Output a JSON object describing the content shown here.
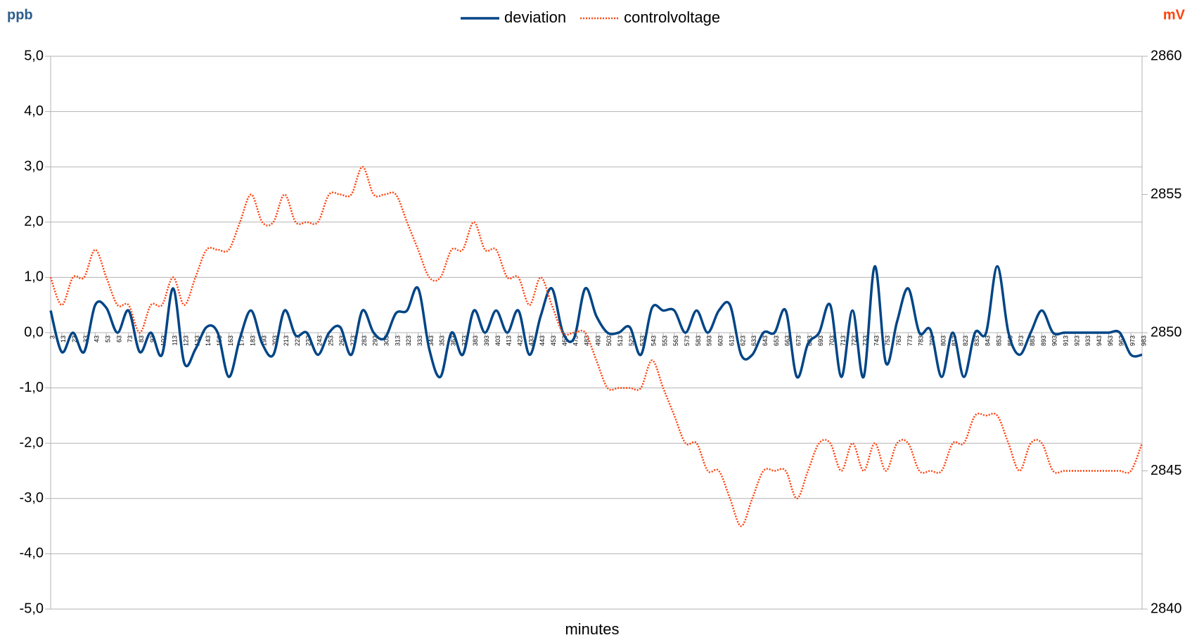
{
  "chart_data": {
    "type": "line",
    "y_label": "ppb",
    "y2_label": "mV",
    "x_label": "minutes",
    "x": [
      3,
      13,
      23,
      33,
      43,
      53,
      63,
      73,
      83,
      93,
      103,
      113,
      123,
      133,
      143,
      153,
      163,
      173,
      183,
      193,
      203,
      213,
      223,
      233,
      243,
      253,
      263,
      273,
      283,
      293,
      303,
      313,
      323,
      333,
      343,
      353,
      363,
      373,
      383,
      393,
      403,
      413,
      423,
      433,
      443,
      453,
      463,
      473,
      483,
      493,
      503,
      513,
      523,
      533,
      543,
      553,
      563,
      573,
      583,
      593,
      603,
      613,
      623,
      633,
      643,
      653,
      663,
      673,
      683,
      693,
      703,
      713,
      723,
      733,
      743,
      753,
      763,
      773,
      783,
      793,
      803,
      813,
      823,
      833,
      843,
      853,
      863,
      873,
      883,
      893,
      903,
      913,
      923,
      933,
      943,
      953,
      963,
      973,
      983
    ],
    "series": [
      {
        "name": "deviation",
        "color": "#004586",
        "style": "solid",
        "values": [
          0.4,
          -0.35,
          0.0,
          -0.35,
          0.5,
          0.45,
          0.0,
          0.4,
          -0.35,
          0.0,
          -0.4,
          0.8,
          -0.55,
          -0.3,
          0.1,
          0.0,
          -0.8,
          -0.1,
          0.4,
          -0.2,
          -0.4,
          0.4,
          -0.05,
          0.0,
          -0.4,
          0.0,
          0.1,
          -0.4,
          0.4,
          0.0,
          -0.1,
          0.35,
          0.4,
          0.8,
          -0.3,
          -0.8,
          0.0,
          -0.4,
          0.4,
          0.0,
          0.4,
          0.0,
          0.4,
          -0.4,
          0.3,
          0.8,
          0.0,
          -0.1,
          0.8,
          0.3,
          0.0,
          0.0,
          0.1,
          -0.4,
          0.45,
          0.4,
          0.4,
          0.0,
          0.4,
          0.0,
          0.4,
          0.5,
          -0.4,
          -0.4,
          0.0,
          0.0,
          0.4,
          -0.8,
          -0.2,
          0.0,
          0.5,
          -0.8,
          0.4,
          -0.8,
          1.2,
          -0.55,
          0.2,
          0.8,
          0.0,
          0.05,
          -0.8,
          0.0,
          -0.8,
          0.0,
          0.0,
          1.2,
          0.0,
          -0.4,
          0.0,
          0.4,
          0.0,
          0.0,
          0.0,
          0.0,
          0.0,
          0.0,
          0.0,
          -0.4,
          -0.4
        ]
      },
      {
        "name": "controlvoltage",
        "color": "#ff420e",
        "style": "dotted",
        "axis": "y2",
        "values": [
          2852,
          2851,
          2852,
          2852,
          2853,
          2852,
          2851,
          2851,
          2850,
          2851,
          2851,
          2852,
          2851,
          2852,
          2853,
          2853,
          2853,
          2854,
          2855,
          2854,
          2854,
          2855,
          2854,
          2854,
          2854,
          2855,
          2855,
          2855,
          2856,
          2855,
          2855,
          2855,
          2854,
          2853,
          2852,
          2852,
          2853,
          2853,
          2854,
          2853,
          2853,
          2852,
          2852,
          2851,
          2852,
          2851,
          2850,
          2850,
          2850,
          2849,
          2848,
          2848,
          2848,
          2848,
          2849,
          2848,
          2847,
          2846,
          2846,
          2845,
          2845,
          2844,
          2843,
          2844,
          2845,
          2845,
          2845,
          2844,
          2845,
          2846,
          2846,
          2845,
          2846,
          2845,
          2846,
          2845,
          2846,
          2846,
          2845,
          2845,
          2845,
          2846,
          2846,
          2847,
          2847,
          2847,
          2846,
          2845,
          2846,
          2846,
          2845,
          2845,
          2845,
          2845,
          2845,
          2845,
          2845,
          2845,
          2846
        ]
      }
    ],
    "ylim": [
      -5,
      5
    ],
    "yticks": [
      {
        "value": -5,
        "label": "-5,0"
      },
      {
        "value": -4,
        "label": "-4,0"
      },
      {
        "value": -3,
        "label": "-3,0"
      },
      {
        "value": -2,
        "label": "-2,0"
      },
      {
        "value": -1,
        "label": "-1,0"
      },
      {
        "value": 0,
        "label": "0,0"
      },
      {
        "value": 1,
        "label": "1,0"
      },
      {
        "value": 2,
        "label": "2,0"
      },
      {
        "value": 3,
        "label": "3,0"
      },
      {
        "value": 4,
        "label": "4,0"
      },
      {
        "value": 5,
        "label": "5,0"
      }
    ],
    "y2lim": [
      2840,
      2860
    ],
    "y2ticks": [
      2840,
      2845,
      2850,
      2855,
      2860
    ],
    "grid": true,
    "legend": "top"
  }
}
